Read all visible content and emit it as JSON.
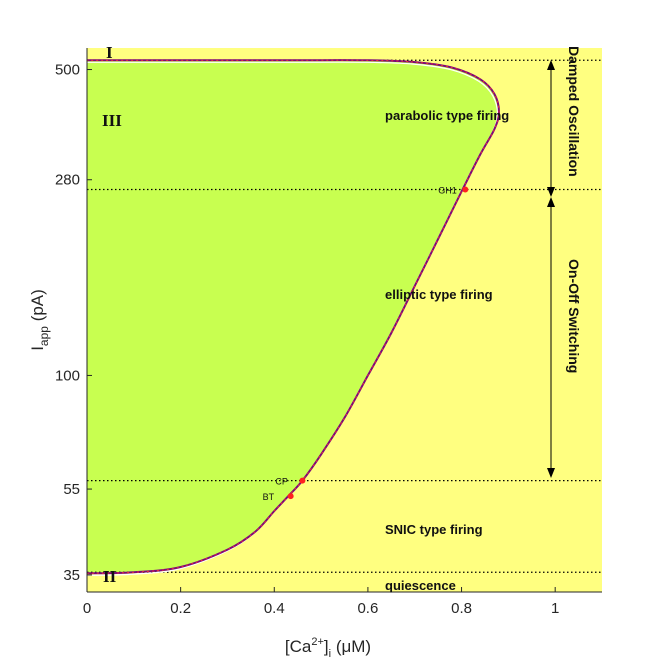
{
  "chart_data": {
    "type": "line",
    "xlabel_main": "[Ca",
    "xlabel_sup": "2+",
    "xlabel_close": "]",
    "xlabel_sub": "i",
    "xlabel_unit": " (μM)",
    "ylabel_main": "I",
    "ylabel_sub": "app",
    "ylabel_unit": " (pA)",
    "xlim": [
      0,
      1.1
    ],
    "y_scale": "log",
    "ylim": [
      32,
      560
    ],
    "x_ticks": [
      {
        "value": 0,
        "label": "0"
      },
      {
        "value": 0.2,
        "label": "0.2"
      },
      {
        "value": 0.4,
        "label": "0.4"
      },
      {
        "value": 0.6,
        "label": "0.6"
      },
      {
        "value": 0.8,
        "label": "0.8"
      },
      {
        "value": 1,
        "label": "1"
      }
    ],
    "y_ticks": [
      {
        "value": 35,
        "label": "35"
      },
      {
        "value": 55,
        "label": "55"
      },
      {
        "value": 100,
        "label": "100"
      },
      {
        "value": 280,
        "label": "280"
      },
      {
        "value": 500,
        "label": "500"
      }
    ],
    "dotted_levels": [
      35.5,
      57.5,
      266,
      525
    ],
    "boundary_curve": [
      [
        0,
        35.3
      ],
      [
        0.1,
        35.5
      ],
      [
        0.2,
        36.5
      ],
      [
        0.3,
        40
      ],
      [
        0.36,
        44
      ],
      [
        0.4,
        49
      ],
      [
        0.43,
        53
      ],
      [
        0.46,
        57.5
      ],
      [
        0.5,
        66
      ],
      [
        0.55,
        80
      ],
      [
        0.6,
        100
      ],
      [
        0.65,
        125
      ],
      [
        0.7,
        160
      ],
      [
        0.75,
        205
      ],
      [
        0.8,
        263
      ],
      [
        0.84,
        320
      ],
      [
        0.87,
        365
      ],
      [
        0.88,
        400
      ],
      [
        0.87,
        440
      ],
      [
        0.84,
        475
      ],
      [
        0.78,
        505
      ],
      [
        0.7,
        520
      ],
      [
        0.6,
        525
      ],
      [
        0.4,
        525
      ],
      [
        0,
        525
      ]
    ],
    "bifurcation_points": [
      {
        "name": "BT",
        "label": "BT",
        "x": 0.435,
        "y": 53
      },
      {
        "name": "CP",
        "label": "CP",
        "x": 0.46,
        "y": 57.5
      },
      {
        "name": "GH1",
        "label": "GH1",
        "x": 0.808,
        "y": 266
      }
    ],
    "region_labels": {
      "parabolic": "parabolic type firing",
      "elliptic": "elliptic type firing",
      "snic": "SNIC type firing",
      "quiescence": "quiescence",
      "region_I": "I",
      "region_II": "II",
      "region_III": "III"
    },
    "range_annotations": {
      "damped": "Damped Oscillation",
      "onoff": "On-Off Switching"
    },
    "colors": {
      "background_region": "#ffff80",
      "firing_region": "#c8ff50",
      "boundary": "#7a0a78",
      "points": "#ff2020",
      "grid_dotted": "#000000"
    },
    "grid": false
  }
}
